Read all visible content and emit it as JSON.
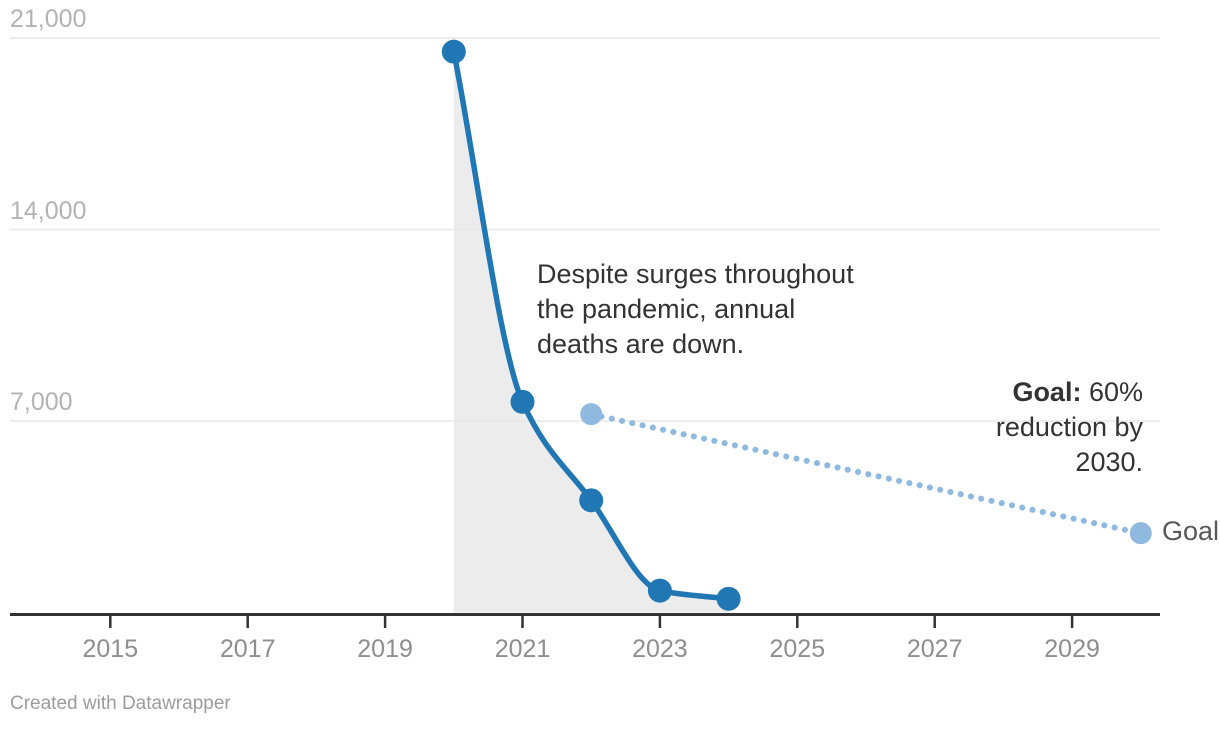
{
  "chart_data": {
    "type": "line",
    "title": "",
    "xlabel": "",
    "ylabel": "",
    "grid": "horizontal",
    "legend": false,
    "x_axis": {
      "tick_years": [
        2015,
        2017,
        2019,
        2021,
        2023,
        2025,
        2027,
        2029
      ],
      "tick_labels": [
        "2015",
        "2017",
        "2019",
        "2021",
        "2023",
        "2025",
        "2027",
        "2029"
      ],
      "visible_range": [
        2013.5,
        2030.3
      ]
    },
    "y_axis": {
      "tick_values": [
        7000,
        14000,
        21000
      ],
      "tick_labels": [
        "7,000",
        "14,000",
        "21,000"
      ],
      "range": [
        0,
        21000
      ]
    },
    "series": [
      {
        "name": "annual-deaths",
        "style": "solid",
        "color": "#2077b4",
        "area_fill": "#ececec",
        "x": [
          2020,
          2021,
          2022,
          2023,
          2024
        ],
        "values": [
          20500,
          7700,
          4100,
          800,
          500
        ]
      },
      {
        "name": "goal",
        "style": "dotted",
        "color": "#8fb9de",
        "x": [
          2022,
          2030
        ],
        "values": [
          7250,
          2900
        ]
      }
    ],
    "annotations": {
      "pandemic_note": "Despite surges throughout\nthe pandemic, annual\ndeaths are down.",
      "goal_note_bold": "Goal:",
      "goal_note_rest": " 60%\nreduction by\n2030.",
      "goal_point_label": "Goal"
    }
  },
  "footer": {
    "credit": "Created with Datawrapper"
  }
}
